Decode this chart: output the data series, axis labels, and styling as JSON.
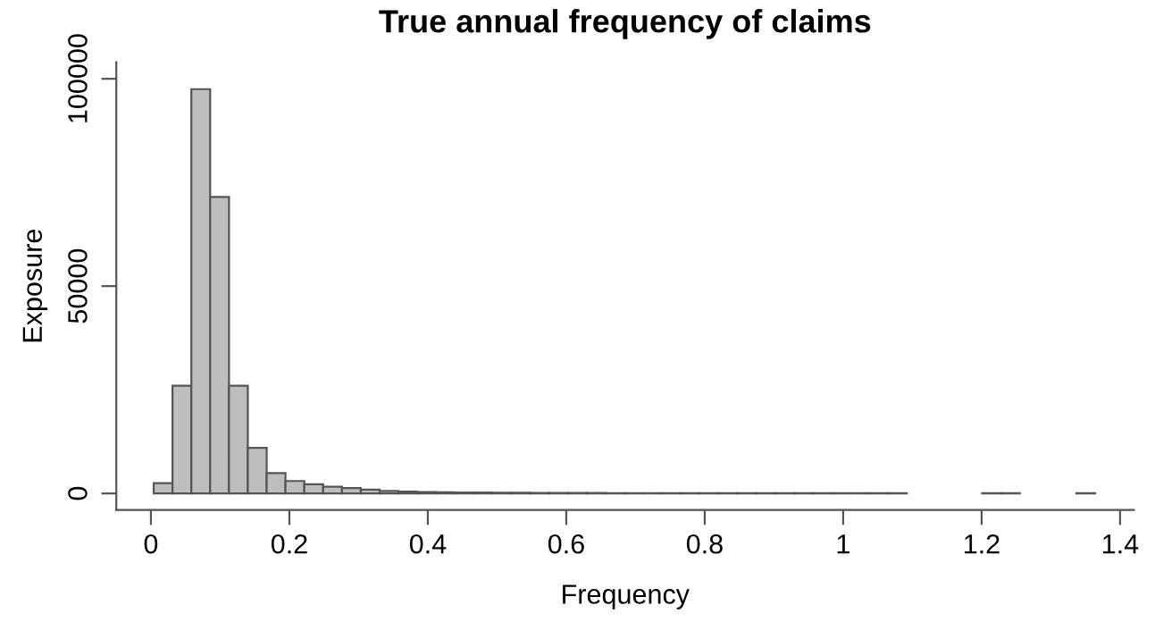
{
  "chart_data": {
    "type": "histogram",
    "title": "True annual frequency of claims",
    "xlabel": "Frequency",
    "ylabel": "Exposure",
    "bins": [
      0.004,
      0.0312,
      0.0584,
      0.0856,
      0.1128,
      0.14,
      0.1672,
      0.1944,
      0.2216,
      0.2488,
      0.276,
      0.3032,
      0.3304,
      0.3576,
      0.3848,
      0.412,
      0.4392,
      0.4664,
      0.4936,
      0.5208,
      0.548,
      0.5752,
      0.6024,
      0.6296,
      0.6568,
      0.684,
      0.7112,
      0.7384,
      0.7656,
      0.7928,
      0.82,
      0.8472,
      0.8744,
      0.9016,
      0.9288,
      0.956,
      0.9832,
      1.0104,
      1.0376,
      1.0648,
      1.092,
      1.1192,
      1.1464,
      1.1736,
      1.2008,
      1.228,
      1.2552,
      1.2824,
      1.3096,
      1.3368,
      1.364
    ],
    "values": [
      2500,
      26000,
      97500,
      71500,
      26000,
      11000,
      4900,
      3000,
      2200,
      1600,
      1300,
      900,
      600,
      450,
      350,
      300,
      250,
      200,
      150,
      150,
      100,
      100,
      100,
      100,
      50,
      50,
      50,
      50,
      50,
      50,
      50,
      50,
      50,
      50,
      50,
      50,
      50,
      50,
      50,
      50,
      null,
      null,
      null,
      null,
      50,
      50,
      null,
      null,
      null,
      50
    ],
    "color": "#bebebe",
    "xlim": [
      -0.05,
      1.42
    ],
    "ylim": [
      -4000,
      104000
    ],
    "xticks": [
      0,
      0.2,
      0.4,
      0.6,
      0.8,
      1,
      1.2,
      1.4
    ],
    "yticks": [
      0,
      50000,
      100000
    ],
    "grid": false
  }
}
